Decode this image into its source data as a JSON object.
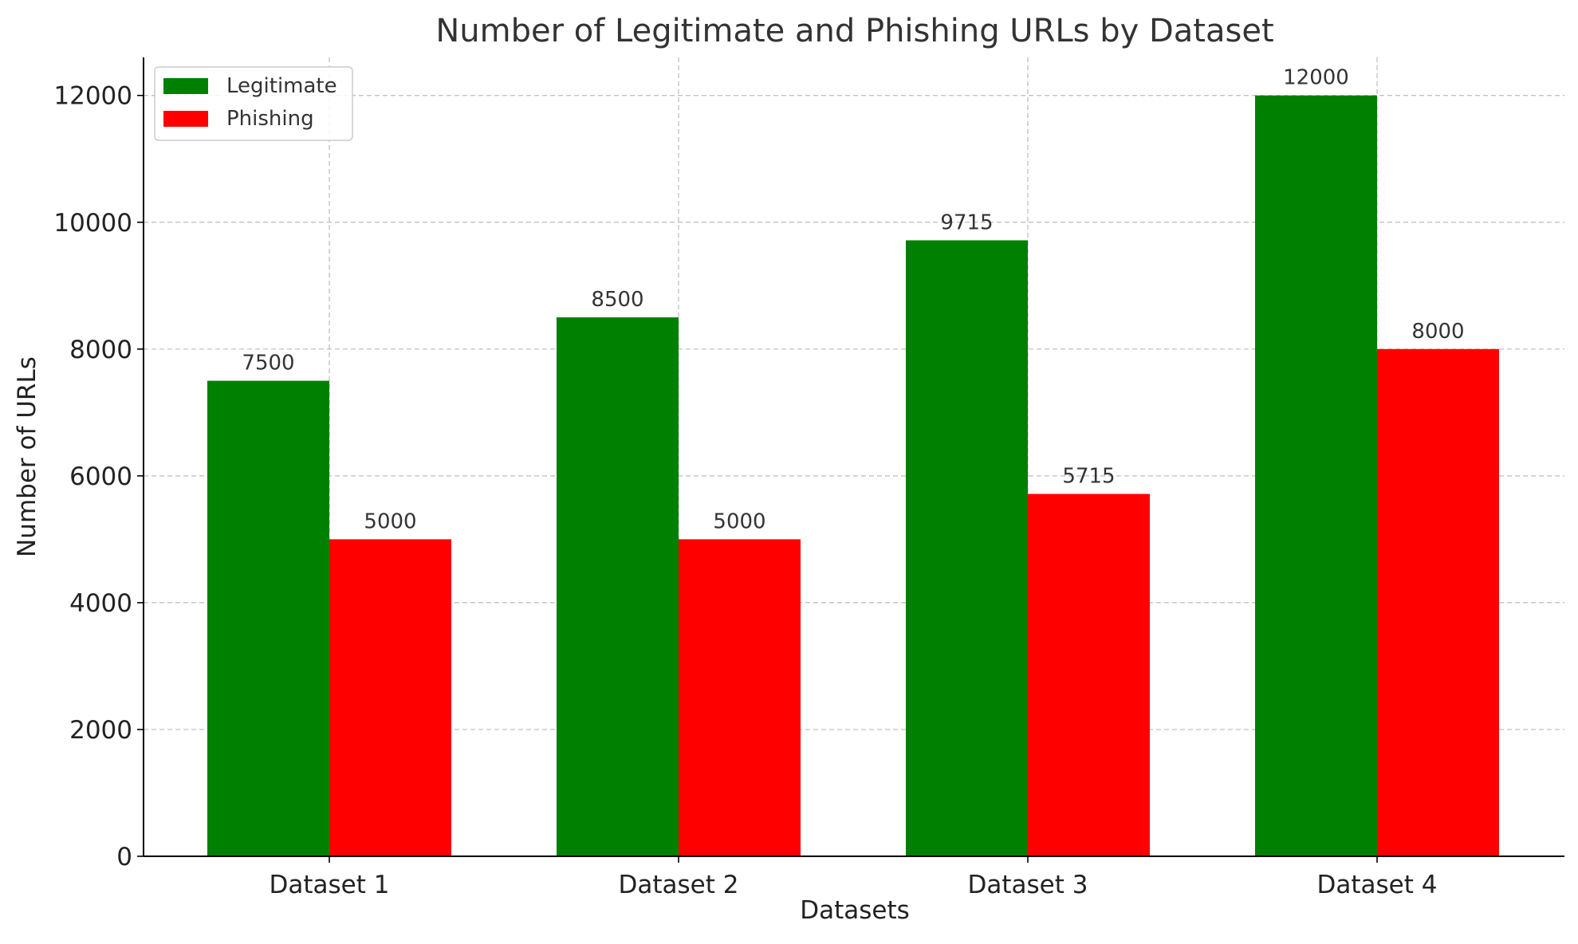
{
  "chart_data": {
    "type": "bar",
    "title": "Number of Legitimate and Phishing URLs by Dataset",
    "xlabel": "Datasets",
    "ylabel": "Number of URLs",
    "categories": [
      "Dataset 1",
      "Dataset 2",
      "Dataset 3",
      "Dataset 4"
    ],
    "series": [
      {
        "name": "Legitimate",
        "color": "#008000",
        "values": [
          7500,
          8500,
          9715,
          12000
        ]
      },
      {
        "name": "Phishing",
        "color": "#ff0000",
        "values": [
          5000,
          5000,
          5715,
          8000
        ]
      }
    ],
    "ylim": [
      0,
      12600
    ],
    "yticks": [
      0,
      2000,
      4000,
      6000,
      8000,
      10000,
      12000
    ],
    "grid": true,
    "legend_position": "top-left"
  }
}
